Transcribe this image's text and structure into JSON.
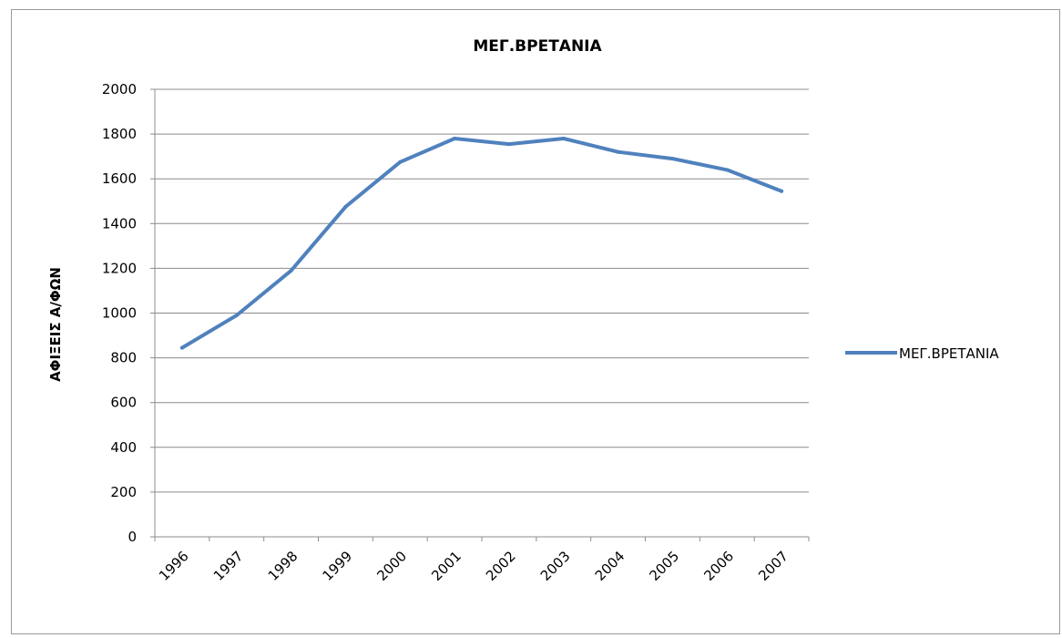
{
  "chart_data": {
    "type": "line",
    "title": "ΜΕΓ.ΒΡΕΤΑΝΙΑ",
    "xlabel": "",
    "ylabel": "ΑΦΙΞΕΙΣ Α/ΦΩΝ",
    "categories": [
      "1996",
      "1997",
      "1998",
      "1999",
      "2000",
      "2001",
      "2002",
      "2003",
      "2004",
      "2005",
      "2006",
      "2007"
    ],
    "series": [
      {
        "name": "ΜΕΓ.ΒΡΕΤΑΝΙΑ",
        "values": [
          845,
          990,
          1190,
          1475,
          1675,
          1780,
          1755,
          1780,
          1720,
          1690,
          1640,
          1545
        ],
        "color": "#4f81bd"
      }
    ],
    "ylim": [
      0,
      2000
    ],
    "yticks": [
      "0",
      "200",
      "400",
      "600",
      "800",
      "1000",
      "1200",
      "1400",
      "1600",
      "1800",
      "2000"
    ],
    "grid": true,
    "legend_position": "right"
  }
}
